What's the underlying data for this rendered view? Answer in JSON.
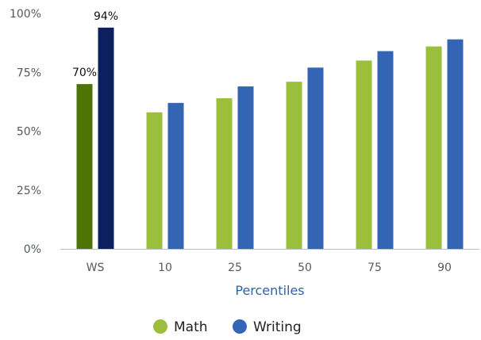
{
  "chart_data": {
    "type": "bar",
    "categories": [
      "WS",
      "10",
      "25",
      "50",
      "75",
      "90"
    ],
    "series": [
      {
        "name": "Math",
        "values": [
          70,
          58,
          64,
          71,
          80,
          86
        ]
      },
      {
        "name": "Writing",
        "values": [
          94,
          62,
          69,
          77,
          84,
          89
        ]
      }
    ],
    "highlight": {
      "category": "WS",
      "colors": [
        "#4e7405",
        "#0c1f5e"
      ],
      "data_labels": [
        "70%",
        "94%"
      ]
    },
    "colors": [
      "#9bbf3a",
      "#3364b6"
    ],
    "y_ticks": [
      "0%",
      "25%",
      "50%",
      "75%",
      "100%"
    ],
    "ylim": [
      0,
      100
    ],
    "xlabel": "Percentiles",
    "ylabel": "",
    "legend_position": "bottom-center",
    "grid": false
  }
}
